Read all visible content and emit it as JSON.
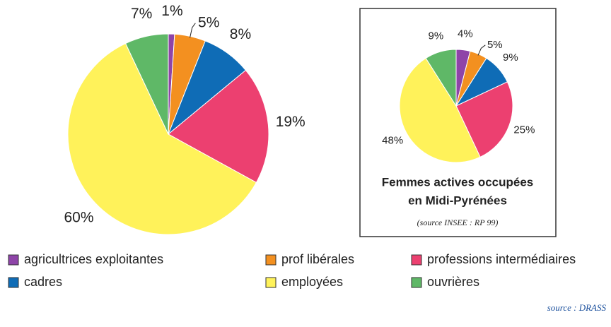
{
  "chart_data": [
    {
      "type": "pie",
      "categories": [
        "agricultrices exploitantes",
        "prof libérales",
        "cadres",
        "professions intermédiaires",
        "employées",
        "ouvrières"
      ],
      "colors": [
        "#8e44a8",
        "#f39020",
        "#0f6cb6",
        "#ec4070",
        "#fff25a",
        "#5fb867"
      ],
      "values": [
        1,
        5,
        8,
        19,
        60,
        7
      ],
      "value_labels": [
        "1%",
        "5%",
        "8%",
        "19%",
        "60%",
        "7%"
      ],
      "source": "source : DRASS"
    },
    {
      "type": "pie",
      "title": [
        "Femmes actives occupées",
        "en Midi-Pyrénées"
      ],
      "subtitle": "(source INSEE : RP 99)",
      "values": [
        4,
        5,
        9,
        25,
        48,
        9
      ],
      "value_labels": [
        "4%",
        "5%",
        "9%",
        "25%",
        "48%",
        "9%"
      ]
    }
  ]
}
